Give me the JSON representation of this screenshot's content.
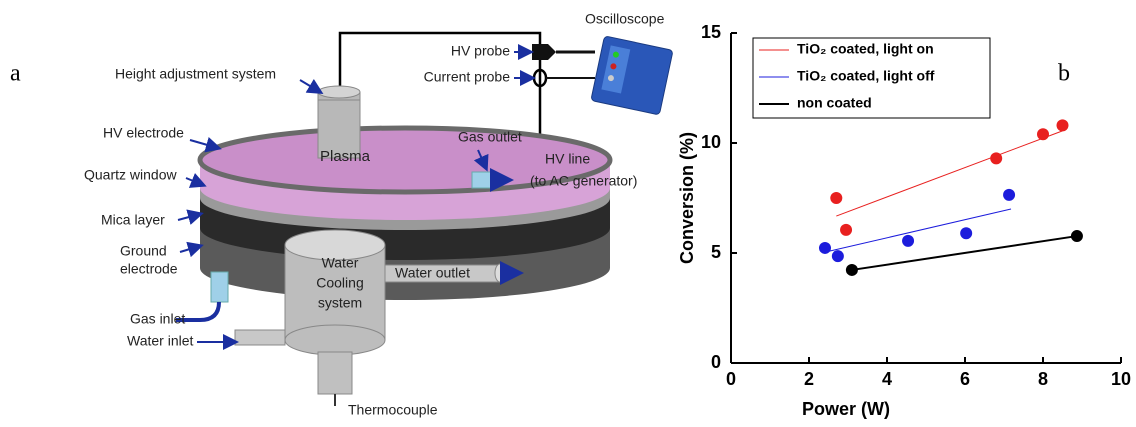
{
  "panel_labels": {
    "a": "a",
    "b": "b"
  },
  "diagram": {
    "labels": {
      "oscilloscope": "Oscilloscope",
      "hv_probe": "HV probe",
      "current_probe": "Current probe",
      "height": "Height adjustment system",
      "hv_electrode": "HV electrode",
      "plasma": "Plasma",
      "gas_outlet": "Gas outlet",
      "quartz": "Quartz window",
      "hv_line": "HV line",
      "ac_generator": "(to AC generator)",
      "mica": "Mica layer",
      "ground_1": "Ground",
      "ground_2": "electrode",
      "water_outlet": "Water outlet",
      "cooling_1": "Water",
      "cooling_2": "Cooling",
      "cooling_3": "system",
      "gas_inlet": "Gas inlet",
      "water_inlet": "Water inlet",
      "thermocouple": "Thermocouple"
    }
  },
  "chart_data": {
    "type": "scatter",
    "x_label": "Power (W)",
    "y_label": "Conversion (%)",
    "xlim": [
      0,
      10
    ],
    "xticks": [
      0,
      2,
      4,
      6,
      8,
      10
    ],
    "ylim": [
      0,
      15
    ],
    "yticks": [
      0,
      5,
      10,
      15
    ],
    "grid": false,
    "legend": "top-left",
    "series": [
      {
        "name": "TiO₂ coated, light on",
        "color": "#e8201f",
        "x": [
          2.7,
          2.95,
          6.8,
          8.0,
          8.5
        ],
        "values": [
          7.5,
          6.05,
          9.3,
          10.4,
          10.8
        ],
        "fit": {
          "x": [
            2.7,
            8.5
          ],
          "y": [
            6.68,
            10.55
          ]
        }
      },
      {
        "name": "TiO₂ coated, light off",
        "color": "#1c1cdc",
        "x": [
          2.41,
          2.74,
          4.54,
          6.03,
          7.13
        ],
        "values": [
          5.23,
          4.86,
          5.55,
          5.9,
          7.64
        ],
        "fit": {
          "x": [
            2.44,
            7.18
          ],
          "y": [
            5.05,
            7.0
          ]
        }
      },
      {
        "name": "non coated",
        "color": "#000000",
        "x": [
          3.1,
          8.87
        ],
        "values": [
          4.23,
          5.77
        ],
        "fit": {
          "x": [
            3.1,
            8.87
          ],
          "y": [
            4.23,
            5.77
          ]
        }
      }
    ]
  }
}
